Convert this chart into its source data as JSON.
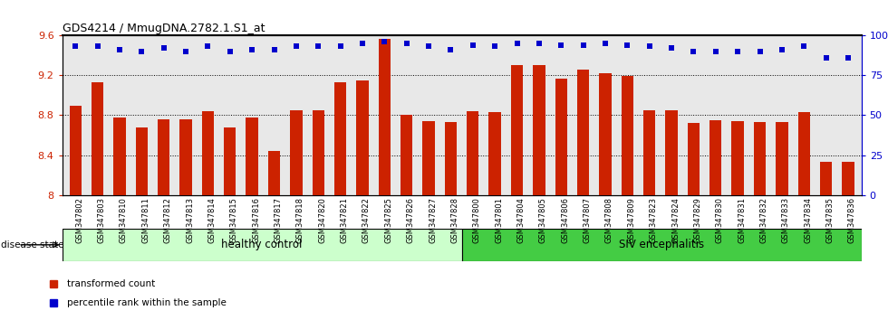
{
  "title": "GDS4214 / MmugDNA.2782.1.S1_at",
  "samples": [
    "GSM347802",
    "GSM347803",
    "GSM347810",
    "GSM347811",
    "GSM347812",
    "GSM347813",
    "GSM347814",
    "GSM347815",
    "GSM347816",
    "GSM347817",
    "GSM347818",
    "GSM347820",
    "GSM347821",
    "GSM347822",
    "GSM347825",
    "GSM347826",
    "GSM347827",
    "GSM347828",
    "GSM347800",
    "GSM347801",
    "GSM347804",
    "GSM347805",
    "GSM347806",
    "GSM347807",
    "GSM347808",
    "GSM347809",
    "GSM347823",
    "GSM347824",
    "GSM347829",
    "GSM347830",
    "GSM347831",
    "GSM347832",
    "GSM347833",
    "GSM347834",
    "GSM347835",
    "GSM347836"
  ],
  "bar_values": [
    8.89,
    9.13,
    8.78,
    8.68,
    8.76,
    8.76,
    8.84,
    8.68,
    8.78,
    8.44,
    8.85,
    8.85,
    9.13,
    9.15,
    9.56,
    8.8,
    8.74,
    8.73,
    8.84,
    8.83,
    9.3,
    9.3,
    9.17,
    9.26,
    9.22,
    9.19,
    8.85,
    8.85,
    8.72,
    8.75,
    8.74,
    8.73,
    8.73,
    8.83,
    8.33,
    8.33
  ],
  "percentile_values": [
    93,
    93,
    91,
    90,
    92,
    90,
    93,
    90,
    91,
    91,
    93,
    93,
    93,
    95,
    96,
    95,
    93,
    91,
    94,
    93,
    95,
    95,
    94,
    94,
    95,
    94,
    93,
    92,
    90,
    90,
    90,
    90,
    91,
    93,
    86,
    86
  ],
  "healthy_count": 18,
  "ylim_left": [
    8.0,
    9.6
  ],
  "ylim_right": [
    0,
    100
  ],
  "yticks_left": [
    8.0,
    8.4,
    8.8,
    9.2,
    9.6
  ],
  "ytick_labels_left": [
    "8",
    "8.4",
    "8.8",
    "9.2",
    "9.6"
  ],
  "yticks_right": [
    0,
    25,
    50,
    75,
    100
  ],
  "ytick_labels_right": [
    "0",
    "25",
    "50",
    "75",
    "100%"
  ],
  "bar_color": "#cc2200",
  "percentile_color": "#0000cc",
  "healthy_bg": "#ccffcc",
  "siv_bg": "#44cc44",
  "label_healthy": "healthy control",
  "label_siv": "SIV encephalitis",
  "disease_state_label": "disease state",
  "legend_bar": "transformed count",
  "legend_pct": "percentile rank within the sample",
  "plot_bg": "#e8e8e8"
}
